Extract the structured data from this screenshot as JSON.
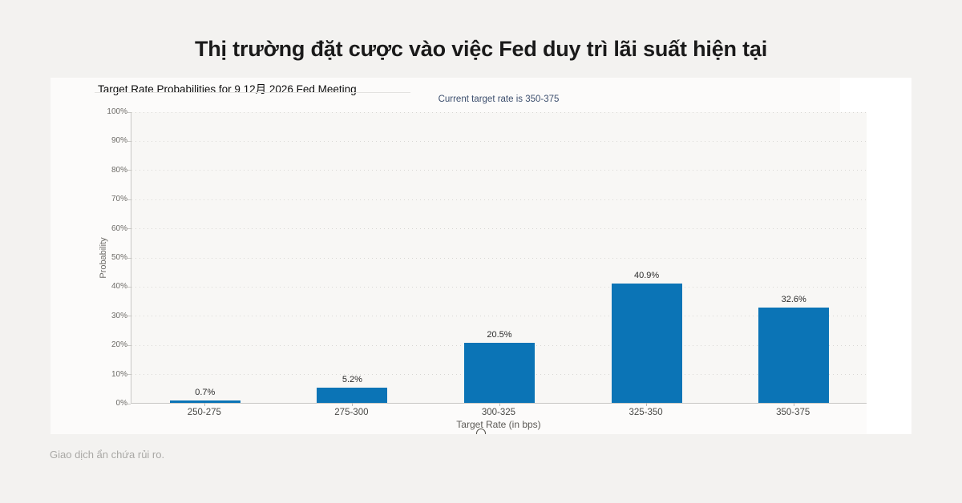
{
  "page": {
    "heading": "Thị trường đặt cược vào việc Fed duy trì lãi suất hiện tại",
    "footer": "Giao dịch ẩn chứa rủi ro."
  },
  "chart_data": {
    "type": "bar",
    "title": "Target Rate Probabilities for 9 12月 2026 Fed Meeting",
    "subtitle": "Current target rate is 350-375",
    "categories": [
      "250-275",
      "275-300",
      "300-325",
      "325-350",
      "350-375"
    ],
    "values": [
      0.7,
      5.2,
      20.5,
      40.9,
      32.6
    ],
    "value_labels": [
      "0.7%",
      "5.2%",
      "20.5%",
      "40.9%",
      "32.6%"
    ],
    "xlabel": "Target Rate (in bps)",
    "ylabel": "Probability",
    "ylim": [
      0,
      100
    ],
    "ytick_step": 10,
    "ytick_labels": [
      "0%",
      "10%",
      "20%",
      "30%",
      "40%",
      "50%",
      "60%",
      "70%",
      "80%",
      "90%",
      "100%"
    ],
    "grid": "horizontal dotted",
    "legend": "none",
    "bar_color": "#0b74b6",
    "subtitle_color": "#3d4f6e",
    "title_color": "#0e0e0e"
  }
}
